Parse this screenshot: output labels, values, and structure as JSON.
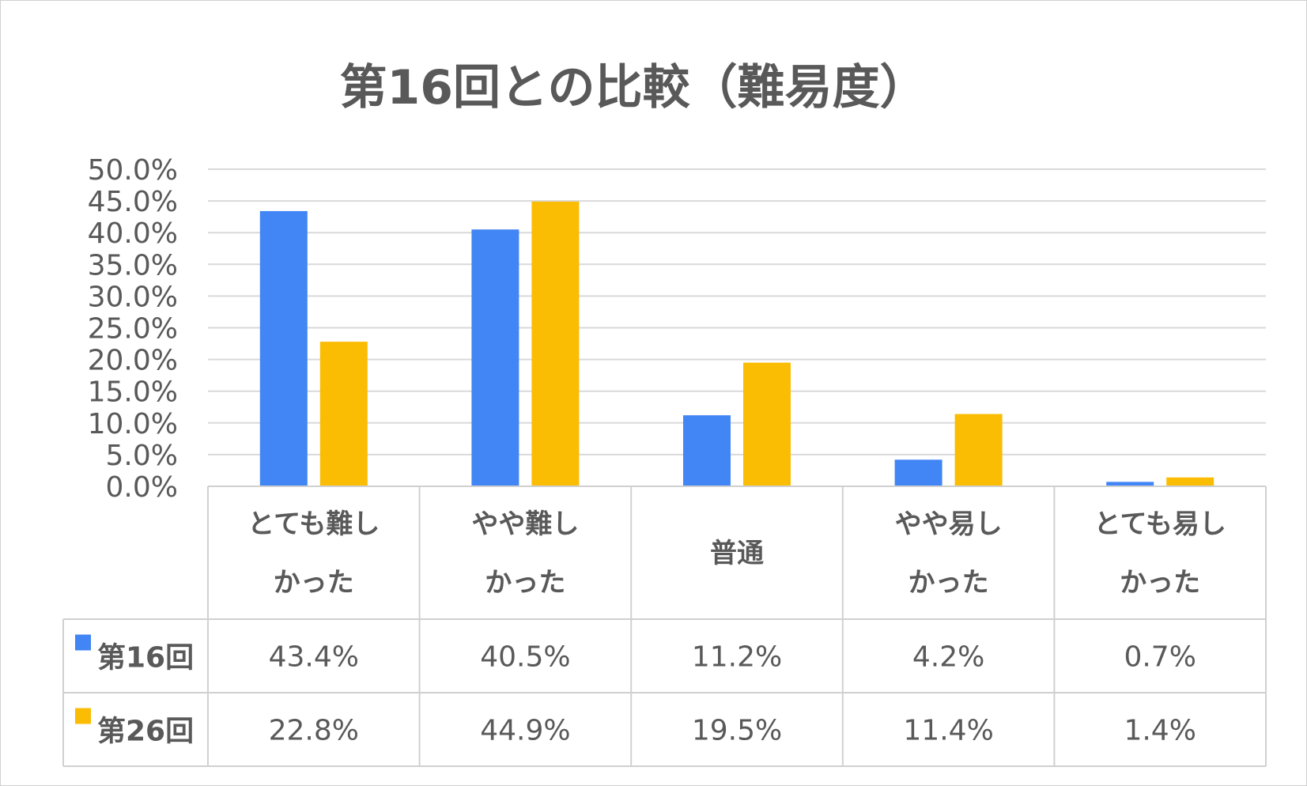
{
  "chart_data": {
    "type": "bar",
    "title": "第16回との比較（難易度）",
    "categories": [
      [
        "とても難し",
        "かった"
      ],
      [
        "やや難し",
        "かった"
      ],
      [
        "普通"
      ],
      [
        "やや易し",
        "かった"
      ],
      [
        "とても易し",
        "かった"
      ]
    ],
    "series": [
      {
        "name": "第16回",
        "color": "#4285F4",
        "values": [
          43.4,
          40.5,
          11.2,
          4.2,
          0.7
        ],
        "labels": [
          "43.4%",
          "40.5%",
          "11.2%",
          "4.2%",
          "0.7%"
        ]
      },
      {
        "name": "第26回",
        "color": "#FBBC04",
        "values": [
          22.8,
          44.9,
          19.5,
          11.4,
          1.4
        ],
        "labels": [
          "22.8%",
          "44.9%",
          "19.5%",
          "11.4%",
          "1.4%"
        ]
      }
    ],
    "yticks": [
      "0.0%",
      "5.0%",
      "10.0%",
      "15.0%",
      "20.0%",
      "25.0%",
      "30.0%",
      "35.0%",
      "40.0%",
      "45.0%",
      "50.0%"
    ],
    "ylim": [
      0,
      50
    ],
    "grid": true,
    "data_table": true
  }
}
